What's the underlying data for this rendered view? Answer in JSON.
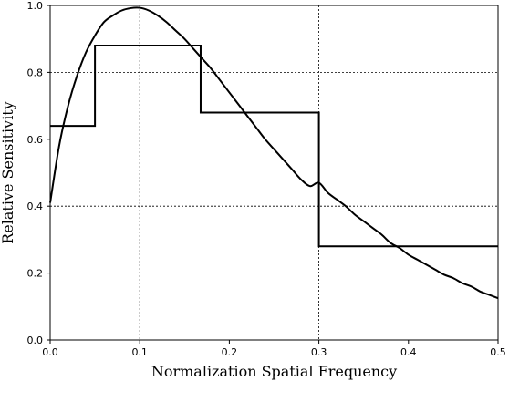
{
  "chart_data": {
    "type": "line",
    "title": "",
    "xlabel": "Normalization Spatial Frequency",
    "ylabel": "Relative Sensitivity",
    "xlim": [
      0.0,
      0.5
    ],
    "ylim": [
      0.0,
      1.0
    ],
    "xticks": [
      "0.0",
      "0.1",
      "0.2",
      "0.3",
      "0.4",
      "0.5"
    ],
    "yticks": [
      "0.0",
      "0.2",
      "0.4",
      "0.6",
      "0.8",
      "1.0"
    ],
    "grid_x": [
      0.1,
      0.3
    ],
    "grid_y": [
      0.4,
      0.8
    ],
    "grid_style": "dotted",
    "series": [
      {
        "kind": "curve",
        "color": "#000000",
        "x": [
          0.0,
          0.01,
          0.02,
          0.03,
          0.04,
          0.05,
          0.06,
          0.07,
          0.08,
          0.09,
          0.1,
          0.11,
          0.12,
          0.13,
          0.14,
          0.15,
          0.16,
          0.17,
          0.18,
          0.19,
          0.2,
          0.21,
          0.22,
          0.23,
          0.24,
          0.25,
          0.26,
          0.27,
          0.28,
          0.29,
          0.3,
          0.31,
          0.32,
          0.33,
          0.34,
          0.35,
          0.36,
          0.37,
          0.38,
          0.39,
          0.4,
          0.41,
          0.42,
          0.43,
          0.44,
          0.45,
          0.46,
          0.47,
          0.48,
          0.49,
          0.5
        ],
        "y": [
          0.41,
          0.58,
          0.7,
          0.79,
          0.86,
          0.91,
          0.95,
          0.97,
          0.985,
          0.992,
          0.993,
          0.985,
          0.97,
          0.95,
          0.925,
          0.9,
          0.87,
          0.84,
          0.81,
          0.775,
          0.74,
          0.705,
          0.67,
          0.635,
          0.6,
          0.57,
          0.54,
          0.51,
          0.48,
          0.46,
          0.47,
          0.44,
          0.42,
          0.4,
          0.375,
          0.355,
          0.335,
          0.315,
          0.29,
          0.275,
          0.255,
          0.24,
          0.225,
          0.21,
          0.195,
          0.185,
          0.17,
          0.16,
          0.145,
          0.135,
          0.125
        ]
      },
      {
        "kind": "step",
        "color": "#000000",
        "segments": [
          {
            "x0": 0.0,
            "x1": 0.05,
            "y": 0.64
          },
          {
            "x0": 0.05,
            "x1": 0.168,
            "y": 0.88
          },
          {
            "x0": 0.168,
            "x1": 0.3,
            "y": 0.68
          },
          {
            "x0": 0.3,
            "x1": 0.5,
            "y": 0.28
          }
        ]
      }
    ]
  }
}
